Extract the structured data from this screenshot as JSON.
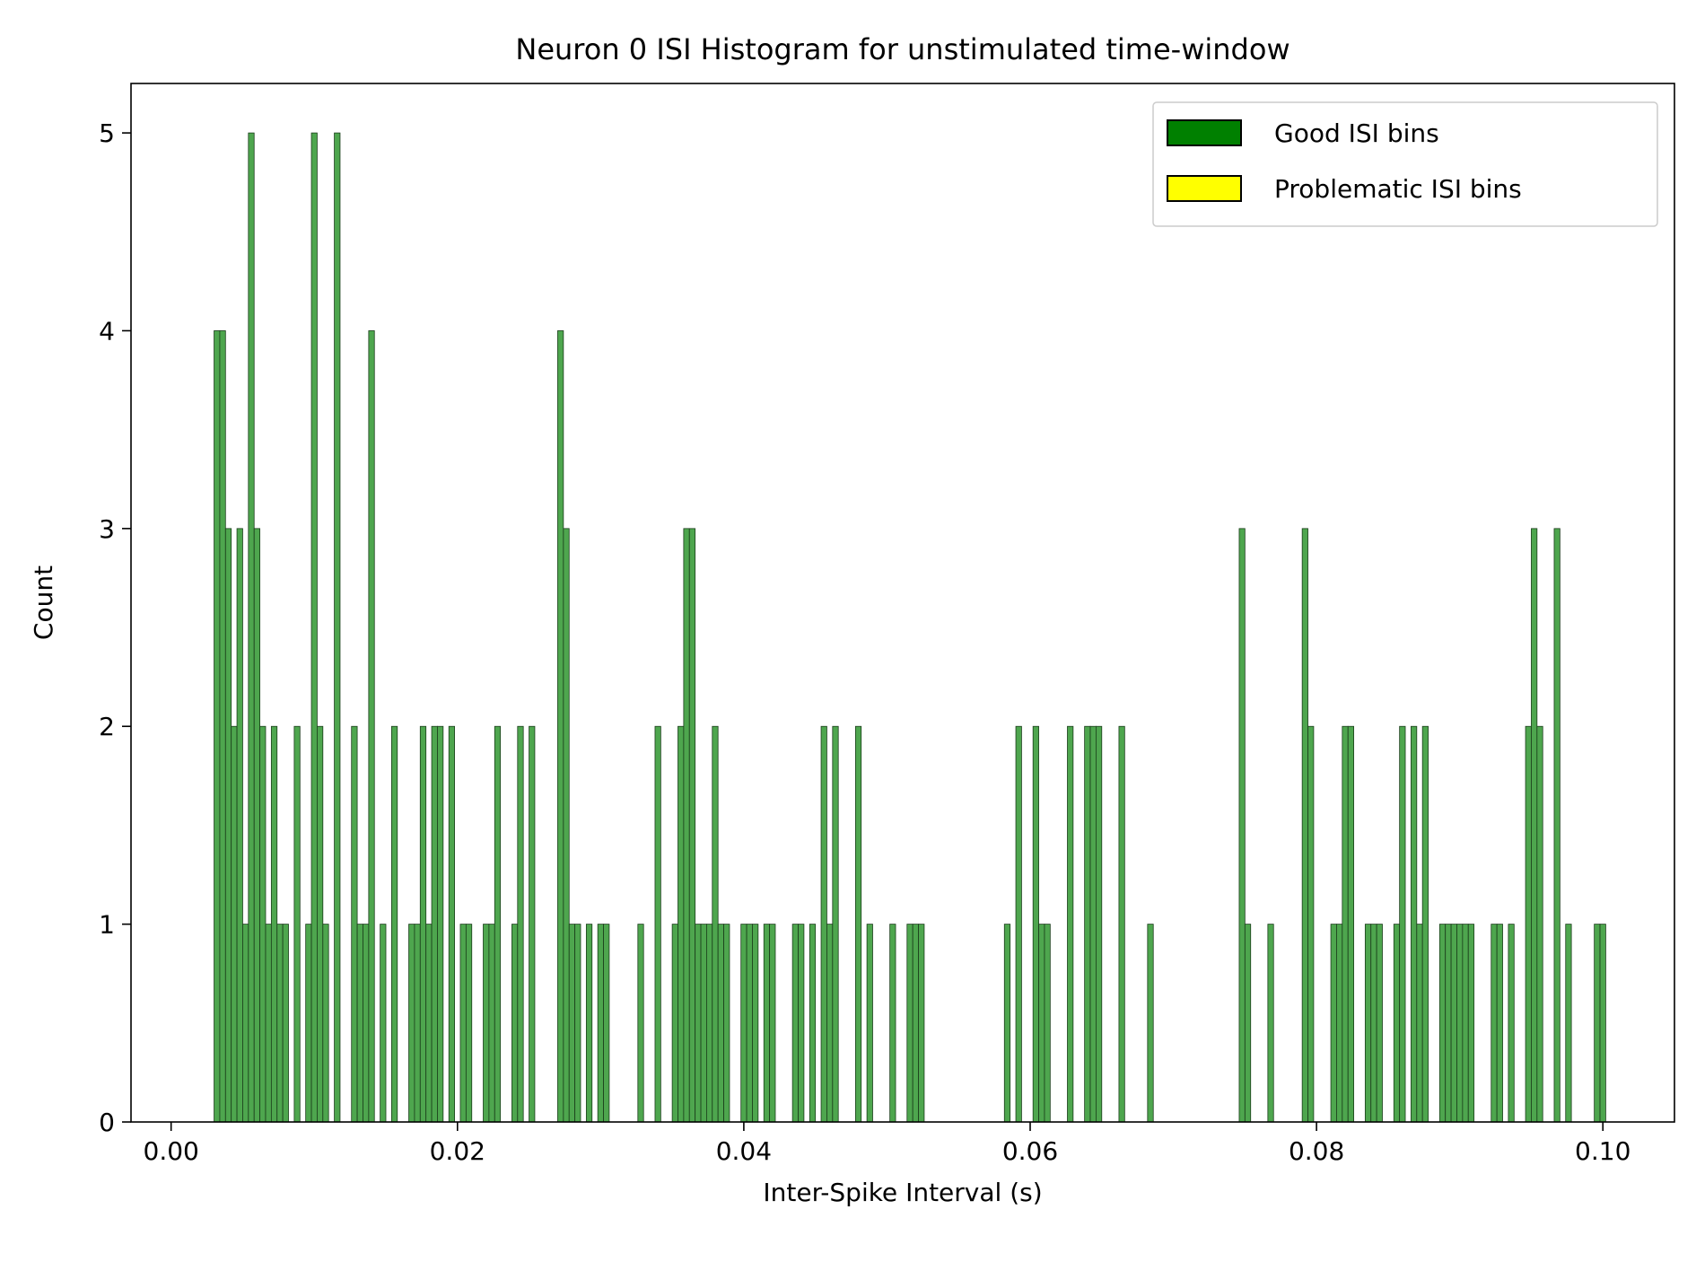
{
  "chart_data": {
    "type": "bar",
    "title": "Neuron 0 ISI Histogram for unstimulated time-window",
    "xlabel": "Inter-Spike Interval (s)",
    "ylabel": "Count",
    "xlim": [
      -0.0028,
      0.105
    ],
    "ylim": [
      0,
      5.25
    ],
    "bin_width": 0.0004,
    "xticks": [
      0.0,
      0.02,
      0.04,
      0.06,
      0.08,
      0.1
    ],
    "xtick_labels": [
      "0.00",
      "0.02",
      "0.04",
      "0.06",
      "0.08",
      "0.10"
    ],
    "yticks": [
      0,
      1,
      2,
      3,
      4,
      5
    ],
    "ytick_labels": [
      "0",
      "1",
      "2",
      "3",
      "4",
      "5"
    ],
    "grid": false,
    "legend_position": "top-right",
    "legend": [
      {
        "label": "Good ISI bins",
        "color": "#008000"
      },
      {
        "label": "Problematic ISI bins",
        "color": "#ffff00"
      }
    ],
    "bar_color": "#4ea64e",
    "bar_edge_color": "#1a3d1a",
    "series": [
      {
        "name": "Good ISI bins",
        "bins": [
          {
            "x": 0.003,
            "count": 4
          },
          {
            "x": 0.0034,
            "count": 4
          },
          {
            "x": 0.0038,
            "count": 3
          },
          {
            "x": 0.0042,
            "count": 2
          },
          {
            "x": 0.0046,
            "count": 3
          },
          {
            "x": 0.005,
            "count": 1
          },
          {
            "x": 0.0054,
            "count": 5
          },
          {
            "x": 0.0058,
            "count": 3
          },
          {
            "x": 0.0062,
            "count": 2
          },
          {
            "x": 0.0066,
            "count": 1
          },
          {
            "x": 0.007,
            "count": 2
          },
          {
            "x": 0.0074,
            "count": 1
          },
          {
            "x": 0.0078,
            "count": 1
          },
          {
            "x": 0.0086,
            "count": 2
          },
          {
            "x": 0.0094,
            "count": 1
          },
          {
            "x": 0.0098,
            "count": 5
          },
          {
            "x": 0.0102,
            "count": 2
          },
          {
            "x": 0.0106,
            "count": 1
          },
          {
            "x": 0.0114,
            "count": 5
          },
          {
            "x": 0.0126,
            "count": 2
          },
          {
            "x": 0.013,
            "count": 1
          },
          {
            "x": 0.0134,
            "count": 1
          },
          {
            "x": 0.0138,
            "count": 4
          },
          {
            "x": 0.0146,
            "count": 1
          },
          {
            "x": 0.0154,
            "count": 2
          },
          {
            "x": 0.0166,
            "count": 1
          },
          {
            "x": 0.017,
            "count": 1
          },
          {
            "x": 0.0174,
            "count": 2
          },
          {
            "x": 0.0178,
            "count": 1
          },
          {
            "x": 0.0182,
            "count": 2
          },
          {
            "x": 0.0186,
            "count": 2
          },
          {
            "x": 0.0194,
            "count": 2
          },
          {
            "x": 0.0202,
            "count": 1
          },
          {
            "x": 0.0206,
            "count": 1
          },
          {
            "x": 0.0218,
            "count": 1
          },
          {
            "x": 0.0222,
            "count": 1
          },
          {
            "x": 0.0226,
            "count": 2
          },
          {
            "x": 0.0238,
            "count": 1
          },
          {
            "x": 0.0242,
            "count": 2
          },
          {
            "x": 0.025,
            "count": 2
          },
          {
            "x": 0.027,
            "count": 4
          },
          {
            "x": 0.0274,
            "count": 3
          },
          {
            "x": 0.0278,
            "count": 1
          },
          {
            "x": 0.0282,
            "count": 1
          },
          {
            "x": 0.029,
            "count": 1
          },
          {
            "x": 0.0298,
            "count": 1
          },
          {
            "x": 0.0302,
            "count": 1
          },
          {
            "x": 0.0326,
            "count": 1
          },
          {
            "x": 0.0338,
            "count": 2
          },
          {
            "x": 0.035,
            "count": 1
          },
          {
            "x": 0.0354,
            "count": 2
          },
          {
            "x": 0.0358,
            "count": 3
          },
          {
            "x": 0.0362,
            "count": 3
          },
          {
            "x": 0.0366,
            "count": 1
          },
          {
            "x": 0.037,
            "count": 1
          },
          {
            "x": 0.0374,
            "count": 1
          },
          {
            "x": 0.0378,
            "count": 2
          },
          {
            "x": 0.0382,
            "count": 1
          },
          {
            "x": 0.0386,
            "count": 1
          },
          {
            "x": 0.0398,
            "count": 1
          },
          {
            "x": 0.0402,
            "count": 1
          },
          {
            "x": 0.0406,
            "count": 1
          },
          {
            "x": 0.0414,
            "count": 1
          },
          {
            "x": 0.0418,
            "count": 1
          },
          {
            "x": 0.0434,
            "count": 1
          },
          {
            "x": 0.0438,
            "count": 1
          },
          {
            "x": 0.0446,
            "count": 1
          },
          {
            "x": 0.0454,
            "count": 2
          },
          {
            "x": 0.0458,
            "count": 1
          },
          {
            "x": 0.0462,
            "count": 2
          },
          {
            "x": 0.0478,
            "count": 2
          },
          {
            "x": 0.0486,
            "count": 1
          },
          {
            "x": 0.0502,
            "count": 1
          },
          {
            "x": 0.0514,
            "count": 1
          },
          {
            "x": 0.0518,
            "count": 1
          },
          {
            "x": 0.0522,
            "count": 1
          },
          {
            "x": 0.0582,
            "count": 1
          },
          {
            "x": 0.059,
            "count": 2
          },
          {
            "x": 0.0602,
            "count": 2
          },
          {
            "x": 0.0606,
            "count": 1
          },
          {
            "x": 0.061,
            "count": 1
          },
          {
            "x": 0.0626,
            "count": 2
          },
          {
            "x": 0.0638,
            "count": 2
          },
          {
            "x": 0.0642,
            "count": 2
          },
          {
            "x": 0.0646,
            "count": 2
          },
          {
            "x": 0.0662,
            "count": 2
          },
          {
            "x": 0.0682,
            "count": 1
          },
          {
            "x": 0.0746,
            "count": 3
          },
          {
            "x": 0.075,
            "count": 1
          },
          {
            "x": 0.0766,
            "count": 1
          },
          {
            "x": 0.079,
            "count": 3
          },
          {
            "x": 0.0794,
            "count": 2
          },
          {
            "x": 0.081,
            "count": 1
          },
          {
            "x": 0.0814,
            "count": 1
          },
          {
            "x": 0.0818,
            "count": 2
          },
          {
            "x": 0.0822,
            "count": 2
          },
          {
            "x": 0.0834,
            "count": 1
          },
          {
            "x": 0.0838,
            "count": 1
          },
          {
            "x": 0.0842,
            "count": 1
          },
          {
            "x": 0.0854,
            "count": 1
          },
          {
            "x": 0.0858,
            "count": 2
          },
          {
            "x": 0.0866,
            "count": 2
          },
          {
            "x": 0.087,
            "count": 1
          },
          {
            "x": 0.0874,
            "count": 2
          },
          {
            "x": 0.0886,
            "count": 1
          },
          {
            "x": 0.089,
            "count": 1
          },
          {
            "x": 0.0894,
            "count": 1
          },
          {
            "x": 0.0898,
            "count": 1
          },
          {
            "x": 0.0902,
            "count": 1
          },
          {
            "x": 0.0906,
            "count": 1
          },
          {
            "x": 0.0922,
            "count": 1
          },
          {
            "x": 0.0926,
            "count": 1
          },
          {
            "x": 0.0934,
            "count": 1
          },
          {
            "x": 0.0946,
            "count": 2
          },
          {
            "x": 0.095,
            "count": 3
          },
          {
            "x": 0.0954,
            "count": 2
          },
          {
            "x": 0.0966,
            "count": 3
          },
          {
            "x": 0.0974,
            "count": 1
          },
          {
            "x": 0.0994,
            "count": 1
          },
          {
            "x": 0.0998,
            "count": 1
          }
        ]
      }
    ]
  }
}
